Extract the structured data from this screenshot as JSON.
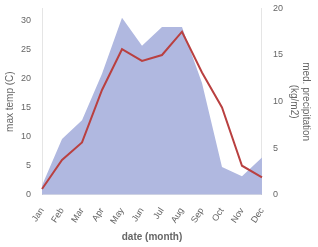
{
  "chart_data": {
    "type": "line",
    "categories": [
      "Jan",
      "Feb",
      "Mar",
      "Apr",
      "May",
      "Jun",
      "Jul",
      "Aug",
      "Sep",
      "Oct",
      "Nov",
      "Dec"
    ],
    "xlabel": "date (month)",
    "ylabel": "max temp (C)",
    "y2label": "med. precipitation\n(kg/m2)",
    "series": [
      {
        "type": "area",
        "axis": "y2",
        "color": "#b0b8e0",
        "values": [
          1,
          6,
          8,
          13,
          19,
          16,
          18,
          18,
          12,
          3,
          2,
          4
        ]
      },
      {
        "type": "line",
        "color": "#b94040",
        "values": [
          1,
          6,
          9,
          18,
          25,
          23,
          24,
          28,
          21,
          15,
          5,
          3
        ]
      }
    ],
    "ylim": [
      0,
      32
    ],
    "yticks": [
      0,
      5,
      10,
      15,
      20,
      25,
      30
    ],
    "y2lim": [
      0,
      20
    ],
    "y2ticks": [
      0,
      5,
      10,
      15,
      20
    ],
    "grid": false
  }
}
